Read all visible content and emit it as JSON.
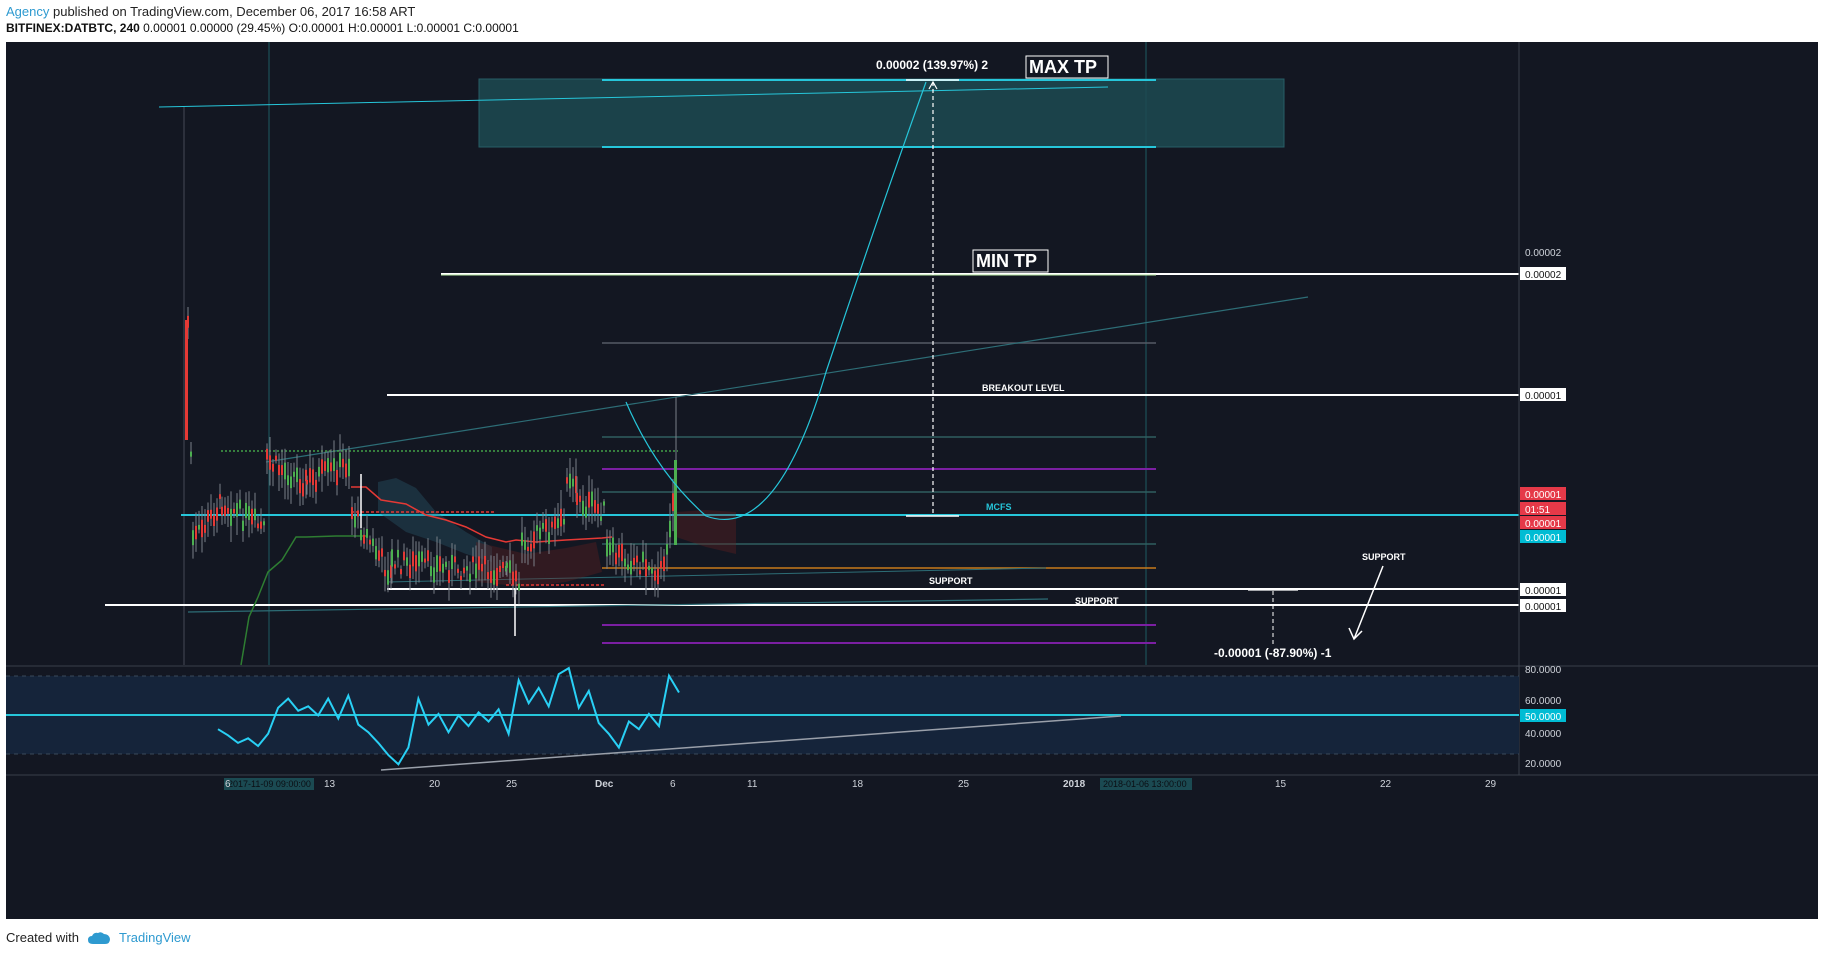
{
  "header": {
    "author": "Agency",
    "published_text": " published on TradingView.com, December 06, 2017 16:58 ART"
  },
  "symbol_line": {
    "symbol": "BITFINEX:DATBTC, 240",
    "ohlc": " 0.00001 0.00000 (29.45%) O:0.00001 H:0.00001 L:0.00001 C:0.00001"
  },
  "footer": {
    "created_with": "Created with",
    "brand": "TradingView"
  },
  "colors": {
    "background": "#131722",
    "up_candle": "#4caf50",
    "down_candle": "#e53935",
    "cyan": "#26c6da",
    "white": "#ffffff",
    "purple": "#7b1fa2",
    "orange": "#c87a1a",
    "gray": "#555a64",
    "rsi_line": "#29d0f5",
    "price_badge_red": "#e53948",
    "price_badge_cyan": "#00bcd4"
  },
  "chart_data": {
    "type": "candlestick",
    "symbol": "BITFINEX:DATBTC",
    "timeframe": "240",
    "x_ticks": [
      "6",
      "13",
      "20",
      "25",
      "Dec",
      "6",
      "11",
      "18",
      "25",
      "2018",
      "15",
      "22",
      "29"
    ],
    "x_ticks_bold": [
      "Dec",
      "2018"
    ],
    "x_highlight_labels": [
      "2017-11-09 09:00:00",
      "2018-01-06 13:00:00"
    ],
    "price_axis_labels": [
      {
        "label": "0.00002",
        "style": "plain"
      },
      {
        "label": "0.00002",
        "style": "boxed"
      },
      {
        "label": "0.00001",
        "style": "boxed"
      },
      {
        "label": "0.00001",
        "style": "red"
      },
      {
        "label": "01:51",
        "style": "red"
      },
      {
        "label": "0.00001",
        "style": "red"
      },
      {
        "label": "0.00001",
        "style": "cyan"
      },
      {
        "label": "0.00001",
        "style": "boxed"
      },
      {
        "label": "0.00001",
        "style": "boxed"
      }
    ],
    "rsi_axis_labels": [
      {
        "label": "80.0000",
        "style": "plain"
      },
      {
        "label": "60.0000",
        "style": "plain"
      },
      {
        "label": "50.0000",
        "style": "cyan"
      },
      {
        "label": "40.0000",
        "style": "plain"
      },
      {
        "label": "20.0000",
        "style": "plain"
      }
    ],
    "annotations": {
      "max_tp": "MAX TP",
      "min_tp": "MIN TP",
      "breakout": "BREAKOUT LEVEL",
      "mcfs": "MCFS",
      "support_1": "SUPPORT",
      "support_2": "SUPPORT",
      "support_3": "SUPPORT",
      "measure_up": "0.00002 (139.97%) 2",
      "measure_down": "-0.00001 (-87.90%) -1"
    },
    "rsi_values": [
      40,
      36,
      31,
      34,
      29,
      37,
      54,
      60,
      52,
      55,
      49,
      60,
      47,
      62,
      43,
      38,
      31,
      23,
      17,
      28,
      60,
      43,
      50,
      38,
      49,
      42,
      51,
      45,
      53,
      37,
      72,
      57,
      67,
      55,
      76,
      80,
      54,
      65,
      44,
      37,
      28,
      45,
      40,
      50,
      42,
      75,
      64
    ]
  }
}
